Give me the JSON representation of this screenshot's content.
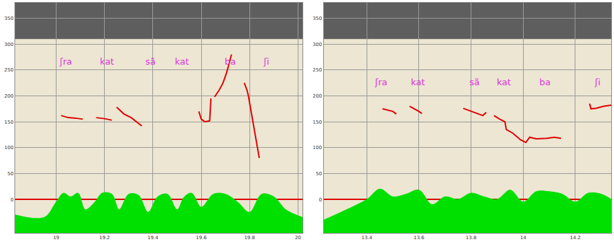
{
  "chart_data": [
    {
      "type": "line",
      "xlim": [
        18.83,
        20.02
      ],
      "xticks": [
        19,
        19.2,
        19.4,
        19.6,
        19.8,
        20
      ],
      "ylim": [
        -65,
        380
      ],
      "yticks": [
        0,
        50,
        100,
        150,
        200,
        250,
        300,
        350
      ],
      "grid": true,
      "spectrogram": {
        "ylim": [
          310,
          380
        ],
        "color": "#5e5e5e"
      },
      "series": [
        {
          "type": "line",
          "color": "#e00000",
          "x": [
            19.02,
            19.05,
            19.08,
            19.11,
            null,
            19.165,
            19.2,
            19.23,
            null,
            19.25,
            19.28,
            19.31,
            19.354,
            null,
            19.59,
            19.6,
            19.615,
            19.635,
            19.64,
            null,
            19.655,
            19.675,
            19.69,
            19.705,
            19.715,
            19.725,
            null,
            19.778,
            19.79,
            19.795,
            19.81,
            19.825,
            19.833,
            19.84
          ],
          "values": [
            162,
            158,
            157,
            155,
            null,
            158,
            156,
            153,
            null,
            178,
            165,
            158,
            142,
            null,
            170,
            155,
            150,
            152,
            195,
            null,
            198,
            212,
            225,
            245,
            262,
            280,
            null,
            225,
            210,
            200,
            160,
            125,
            100,
            80
          ]
        },
        {
          "type": "area",
          "color": "#00e000",
          "x": [
            18.83,
            18.95,
            19.0,
            19.03,
            19.06,
            19.09,
            19.12,
            19.16,
            19.19,
            19.23,
            19.26,
            19.3,
            19.34,
            19.38,
            19.42,
            19.46,
            19.5,
            19.53,
            19.56,
            19.6,
            19.65,
            19.7,
            19.75,
            19.8,
            19.85,
            19.9,
            19.95,
            20.02
          ],
          "values": [
            -30,
            -35,
            -5,
            12,
            5,
            12,
            -20,
            -5,
            12,
            10,
            -20,
            10,
            8,
            -25,
            5,
            10,
            -20,
            5,
            12,
            -15,
            10,
            10,
            -5,
            -25,
            10,
            5,
            -20,
            -35
          ]
        },
        {
          "type": "text",
          "color": "#dd33dd",
          "x": [
            19.04,
            19.21,
            19.39,
            19.52,
            19.72,
            19.87
          ],
          "values": [
            265,
            265,
            265,
            265,
            265,
            265
          ],
          "texts": [
            "ʃra",
            "kat",
            "sã",
            "kat",
            "ba",
            "ʃi"
          ]
        }
      ]
    },
    {
      "type": "line",
      "xlim": [
        13.234,
        14.338
      ],
      "xticks": [
        13.4,
        13.6,
        13.8,
        14,
        14.2
      ],
      "ylim": [
        -65,
        380
      ],
      "yticks": [
        0,
        50,
        100,
        150,
        200,
        250,
        300,
        350
      ],
      "grid": true,
      "spectrogram": {
        "ylim": [
          310,
          380
        ],
        "color": "#5e5e5e"
      },
      "series": [
        {
          "type": "line",
          "color": "#e00000",
          "x": [
            13.46,
            13.48,
            13.5,
            13.513,
            null,
            13.564,
            13.58,
            13.6,
            13.611,
            null,
            13.77,
            13.8,
            13.83,
            13.845,
            13.858,
            null,
            13.888,
            13.91,
            13.93,
            13.935,
            13.96,
            13.99,
            14.01,
            14.025,
            14.05,
            14.09,
            14.12,
            14.145,
            null,
            14.255,
            14.26,
            14.28,
            14.31,
            14.338
          ],
          "values": [
            175,
            173,
            170,
            165,
            null,
            180,
            176,
            170,
            166,
            null,
            176,
            170,
            165,
            162,
            168,
            null,
            162,
            155,
            150,
            135,
            128,
            115,
            110,
            120,
            117,
            118,
            120,
            118,
            null,
            185,
            175,
            176,
            180,
            182
          ]
        },
        {
          "type": "area",
          "color": "#00e000",
          "x": [
            13.234,
            13.3,
            13.4,
            13.45,
            13.5,
            13.55,
            13.6,
            13.65,
            13.7,
            13.75,
            13.8,
            13.85,
            13.9,
            13.95,
            14.0,
            14.05,
            14.1,
            14.15,
            14.2,
            14.25,
            14.3,
            14.338
          ],
          "values": [
            -40,
            -25,
            0,
            20,
            5,
            10,
            18,
            -10,
            5,
            0,
            12,
            5,
            0,
            18,
            -5,
            15,
            15,
            10,
            -5,
            12,
            10,
            0
          ]
        },
        {
          "type": "text",
          "color": "#dd33dd",
          "x": [
            13.455,
            13.596,
            13.813,
            13.926,
            14.084,
            14.286
          ],
          "values": [
            225,
            225,
            225,
            225,
            225,
            225
          ],
          "texts": [
            "ʃra",
            "kat",
            "sã",
            "kat",
            "ba",
            "ʃi"
          ]
        }
      ]
    }
  ]
}
